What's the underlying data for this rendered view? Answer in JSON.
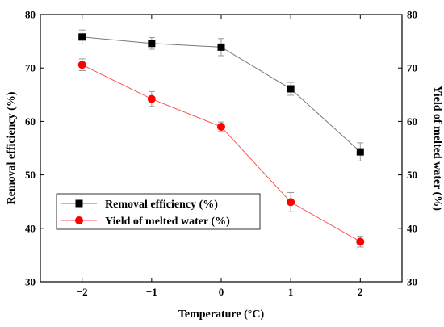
{
  "chart_data": {
    "type": "line",
    "x": [
      -2,
      -1,
      0,
      1,
      2
    ],
    "xlabel": "Temperature (°C)",
    "ylabel_left": "Removal efficiency (%)",
    "ylabel_right": "Yield of melted water (%)",
    "xlim": [
      -2.6,
      2.6
    ],
    "ylim": [
      30,
      80
    ],
    "x_ticks": [
      "−2",
      "−1",
      "0",
      "1",
      "2"
    ],
    "y_ticks": [
      30,
      40,
      50,
      60,
      70,
      80
    ],
    "grid": false,
    "legend_position": "lower-left",
    "series": [
      {
        "name": "Removal efficiency (%)",
        "marker": "square",
        "color": "#000000",
        "line_color": "#777777",
        "values": [
          75.8,
          74.6,
          73.9,
          66.1,
          54.3
        ],
        "errors": [
          1.3,
          1.1,
          1.6,
          1.2,
          1.7
        ]
      },
      {
        "name": "Yield of melted water (%)",
        "marker": "circle",
        "color": "#ff0000",
        "line_color": "#ff5555",
        "values": [
          70.6,
          64.2,
          59.0,
          44.9,
          37.5
        ],
        "errors": [
          1.1,
          1.4,
          0.9,
          1.8,
          1.0
        ]
      }
    ]
  }
}
